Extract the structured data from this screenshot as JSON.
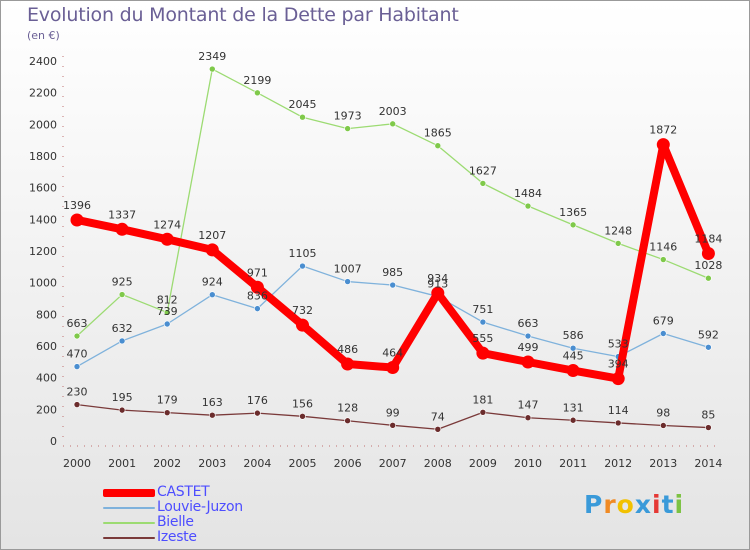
{
  "title": "Evolution du Montant de la Dette par Habitant",
  "subtitle": "(en €)",
  "logo": {
    "text": "Proxiti",
    "letters": [
      {
        "char": "P",
        "color": "#3a9ad9"
      },
      {
        "char": "r",
        "color": "#f08a24"
      },
      {
        "char": "o",
        "color": "#f2c100"
      },
      {
        "char": "x",
        "color": "#3a9ad9"
      },
      {
        "char": "i",
        "color": "#e53935"
      },
      {
        "char": "t",
        "color": "#3a9ad9"
      },
      {
        "char": "i",
        "color": "#7cc242"
      }
    ]
  },
  "chart_data": {
    "type": "line",
    "title": "Evolution du Montant de la Dette par Habitant",
    "subtitle": "(en €)",
    "x": [
      "2000",
      "2001",
      "2002",
      "2003",
      "2004",
      "2005",
      "2006",
      "2007",
      "2008",
      "2009",
      "2010",
      "2011",
      "2012",
      "2013",
      "2014"
    ],
    "ylim": [
      0,
      2400
    ],
    "yticks": [
      0,
      200,
      400,
      600,
      800,
      1000,
      1200,
      1400,
      1600,
      1800,
      2000,
      2200,
      2400
    ],
    "grid": false,
    "legend": "bottom-left",
    "series": [
      {
        "name": "Bielle",
        "color": "#9cdb72",
        "marker": "#7fc94a",
        "width": 1.3,
        "radius": 3,
        "values": [
          663,
          925,
          812,
          2349,
          2199,
          2045,
          1973,
          2003,
          1865,
          1627,
          1484,
          1365,
          1248,
          1146,
          1028
        ]
      },
      {
        "name": "Louvie-Juzon",
        "color": "#7fb2dc",
        "marker": "#4a8ed0",
        "width": 1.3,
        "radius": 3,
        "values": [
          470,
          632,
          739,
          924,
          836,
          1105,
          1007,
          985,
          913,
          751,
          663,
          586,
          533,
          679,
          592
        ]
      },
      {
        "name": "Izeste",
        "color": "#7a3a3a",
        "marker": "#6b2c2c",
        "width": 1.3,
        "radius": 3,
        "values": [
          230,
          195,
          179,
          163,
          176,
          156,
          128,
          99,
          74,
          181,
          147,
          131,
          114,
          98,
          85
        ]
      },
      {
        "name": "CASTET",
        "color": "#ff0000",
        "marker": "#ff0000",
        "width": 8,
        "radius": 6.5,
        "values": [
          1396,
          1337,
          1274,
          1207,
          971,
          732,
          486,
          464,
          934,
          555,
          499,
          445,
          394,
          1872,
          1184
        ]
      }
    ],
    "legend_order": [
      "CASTET",
      "Louvie-Juzon",
      "Bielle",
      "Izeste"
    ]
  }
}
